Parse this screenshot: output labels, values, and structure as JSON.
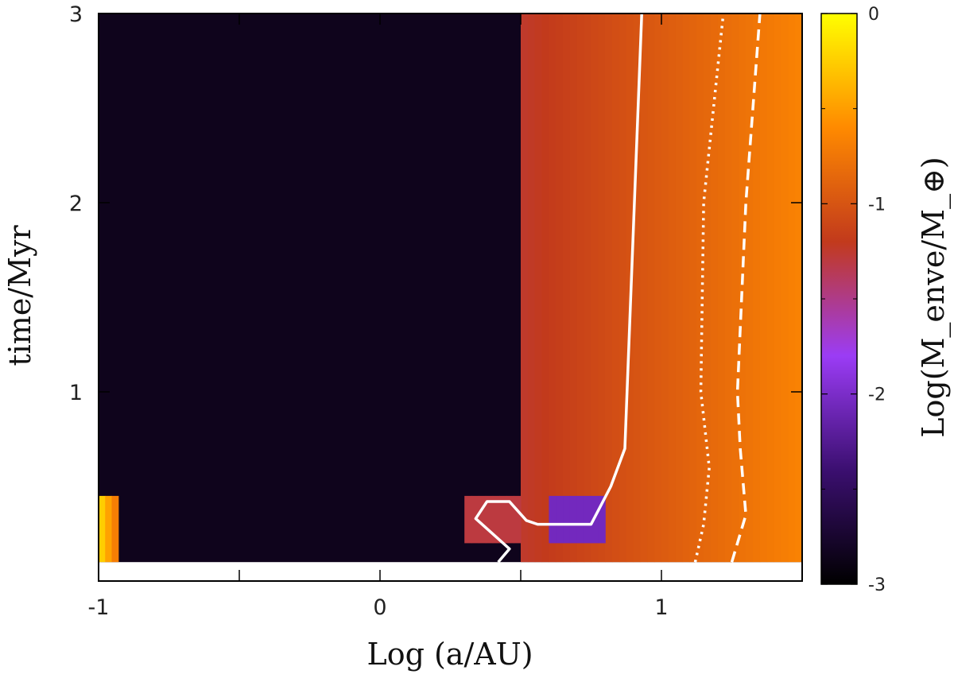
{
  "chart_data": {
    "type": "heatmap",
    "xlabel": "Log (a/AU)",
    "ylabel": "time/Myr",
    "colorbar_label": "Log(M_enve/M_⊕)",
    "xlim": [
      -1,
      1.5
    ],
    "ylim": [
      0,
      3
    ],
    "x_ticks": [
      -1,
      0,
      1
    ],
    "x_tick_labels": [
      "-1",
      "0",
      "1"
    ],
    "x_minor_ticks": [
      -0.5,
      0.5
    ],
    "y_ticks": [
      1,
      2,
      3
    ],
    "y_tick_labels": [
      "1",
      "2",
      "3"
    ],
    "colorbar_range": [
      -3,
      0
    ],
    "colorbar_ticks": [
      0,
      -1,
      -2,
      -3
    ],
    "colorbar_tick_labels": [
      "0",
      "-1",
      "-2",
      "-3"
    ],
    "colormap": [
      "#000000",
      "#3b0f70",
      "#9b3cf5",
      "#c23a1c",
      "#ff8a00",
      "#ffff00"
    ],
    "background_value": -2.85,
    "time_start": 0.1,
    "regions": [
      {
        "x0": 0.5,
        "x1": 1.5,
        "t0": 0.1,
        "t1": 3.0,
        "value_left": -1.25,
        "value_right": -0.65
      },
      {
        "x0": 0.3,
        "x1": 0.5,
        "t0": 0.2,
        "t1": 0.45,
        "value_left": -1.3,
        "value_right": -1.3
      },
      {
        "x0": 0.6,
        "x1": 0.8,
        "t0": 0.2,
        "t1": 0.45,
        "value_left": -2.05,
        "value_right": -2.05
      },
      {
        "x0": -1.0,
        "x1": -0.93,
        "t0": 0.1,
        "t1": 0.45,
        "value_left": -0.15,
        "value_right": -0.8
      }
    ],
    "curves": [
      {
        "style": "solid",
        "points": [
          [
            0.42,
            0.1
          ],
          [
            0.46,
            0.17
          ],
          [
            0.34,
            0.33
          ],
          [
            0.38,
            0.42
          ],
          [
            0.46,
            0.42
          ],
          [
            0.52,
            0.32
          ],
          [
            0.56,
            0.3
          ],
          [
            0.75,
            0.3
          ],
          [
            0.82,
            0.5
          ],
          [
            0.87,
            0.7
          ],
          [
            0.93,
            3.0
          ]
        ]
      },
      {
        "style": "dotted",
        "points": [
          [
            1.12,
            0.1
          ],
          [
            1.15,
            0.3
          ],
          [
            1.17,
            0.6
          ],
          [
            1.14,
            1.0
          ],
          [
            1.15,
            2.0
          ],
          [
            1.22,
            3.0
          ]
        ]
      },
      {
        "style": "dashed",
        "points": [
          [
            1.25,
            0.1
          ],
          [
            1.3,
            0.35
          ],
          [
            1.28,
            0.7
          ],
          [
            1.27,
            1.0
          ],
          [
            1.3,
            2.0
          ],
          [
            1.35,
            3.0
          ]
        ]
      }
    ]
  }
}
